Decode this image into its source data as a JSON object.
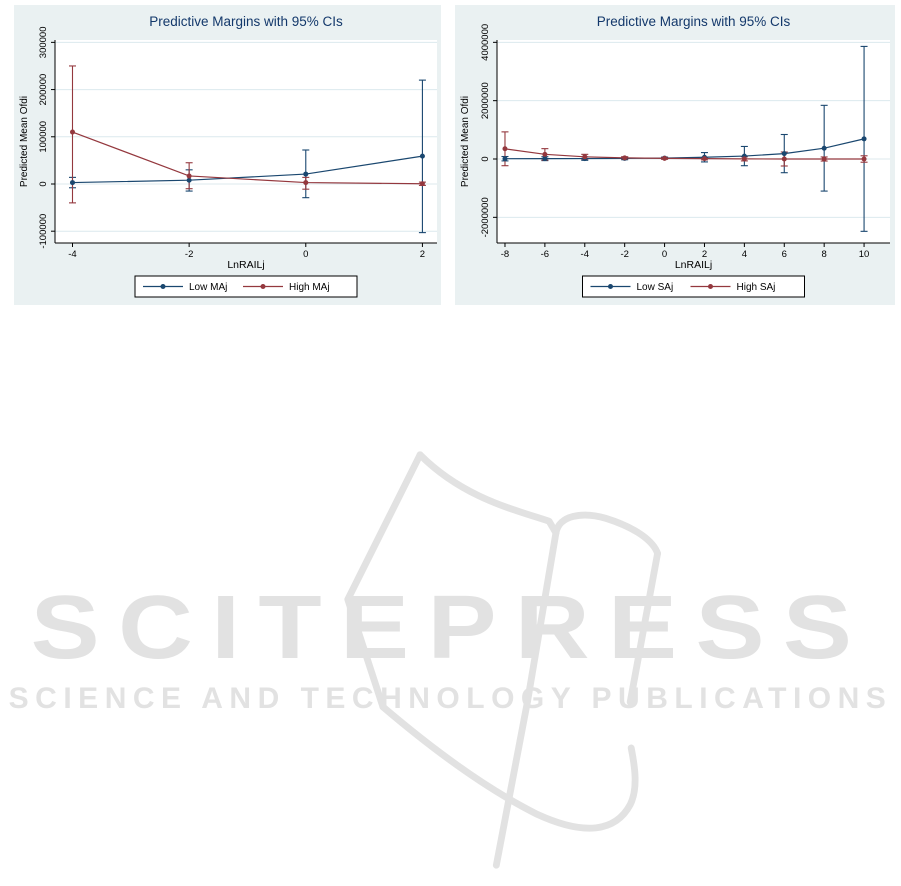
{
  "watermark": {
    "logo_text": "SCITEPRESS",
    "tagline": "SCIENCE AND TECHNOLOGY PUBLICATIONS",
    "color": "#e2e2e2",
    "icon": "open-book-outline-icon"
  },
  "colors": {
    "panel_background": "#eaf1f2",
    "plot_background": "#ffffff",
    "gridline": "#dce9ee",
    "axis": "#000000",
    "title_text": "#13386b",
    "navy_series": "#1a476f",
    "maroon_series": "#94383e",
    "legend_border": "#000000"
  },
  "chart_data": [
    {
      "type": "line",
      "title": "Predictive Margins with 95% CIs",
      "xlabel": "LnRAILj",
      "ylabel": "Predicted Mean Ofdi",
      "xlim": [
        -4.3,
        2.25
      ],
      "ylim": [
        -125000,
        305000
      ],
      "xticks": [
        -4,
        -2,
        0,
        2
      ],
      "yticks": [
        -100000,
        0,
        100000,
        200000,
        300000
      ],
      "grid": true,
      "legend_position": "bottom-center",
      "x": [
        -4,
        -2,
        0,
        2
      ],
      "series": [
        {
          "name": "Low MAj",
          "color": "#1a476f",
          "values": [
            3000,
            8000,
            21000,
            59000
          ],
          "ci_low": [
            -8000,
            -15000,
            -29000,
            -103000
          ],
          "ci_high": [
            14000,
            30000,
            72000,
            220000
          ]
        },
        {
          "name": "High MAj",
          "color": "#94383e",
          "values": [
            110000,
            17000,
            3000,
            500
          ],
          "ci_low": [
            -40000,
            -10000,
            -11000,
            -3000
          ],
          "ci_high": [
            250000,
            45000,
            14000,
            4000
          ]
        }
      ]
    },
    {
      "type": "line",
      "title": "Predictive Margins with 95% CIs",
      "xlabel": "LnRAILj",
      "ylabel": "Predicted Mean Ofdi",
      "xlim": [
        -8.4,
        11.3
      ],
      "ylim": [
        -2880000,
        4080000
      ],
      "xticks": [
        -8,
        -6,
        -4,
        -2,
        0,
        2,
        4,
        6,
        8,
        10
      ],
      "yticks": [
        -2000000,
        0,
        2000000,
        4000000
      ],
      "grid": true,
      "legend_position": "bottom-center",
      "x": [
        -8,
        -6,
        -4,
        -2,
        0,
        2,
        4,
        6,
        8,
        10
      ],
      "series": [
        {
          "name": "Low SAj",
          "color": "#1a476f",
          "values": [
            10000,
            12000,
            15000,
            22000,
            32000,
            60000,
            100000,
            185000,
            370000,
            690000
          ],
          "ci_low": [
            -65000,
            -55000,
            -45000,
            -25000,
            0,
            -100000,
            -230000,
            -470000,
            -1100000,
            -2480000
          ],
          "ci_high": [
            85000,
            78000,
            75000,
            70000,
            65000,
            220000,
            430000,
            840000,
            1840000,
            3860000
          ]
        },
        {
          "name": "High SAj",
          "color": "#94383e",
          "values": [
            350000,
            160000,
            75000,
            38000,
            22000,
            12000,
            5000,
            0,
            0,
            0
          ],
          "ci_low": [
            -230000,
            -35000,
            -10000,
            0,
            -10000,
            -30000,
            -65000,
            -240000,
            -70000,
            -110000
          ],
          "ci_high": [
            930000,
            355000,
            160000,
            76000,
            54000,
            54000,
            75000,
            240000,
            70000,
            110000
          ]
        }
      ]
    }
  ]
}
